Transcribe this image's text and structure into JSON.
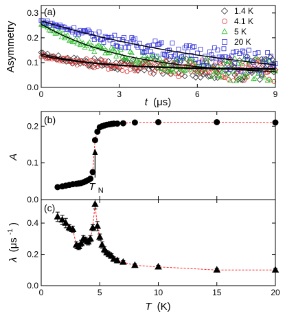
{
  "chart_data": [
    {
      "panel_label": "(a)",
      "type": "scatter",
      "xlabel_main": "t",
      "xlabel_unit": "(μs)",
      "ylabel": "Asymmetry",
      "xlim": [
        0,
        9
      ],
      "ylim": [
        0,
        0.33
      ],
      "xticks": [
        0,
        3,
        6,
        9
      ],
      "yticks": [
        0.0,
        0.1,
        0.2,
        0.3
      ],
      "ytick_labels": [
        "0.0",
        "0.1",
        "0.2",
        "0.3"
      ],
      "legend_position": "top-right",
      "series": [
        {
          "name": "1.4 K",
          "marker": "diamond",
          "color": "#333333",
          "initial": 0.135,
          "rate": 0.45,
          "baseline": 0.075
        },
        {
          "name": "4.1 K",
          "marker": "circle",
          "color": "#e03030",
          "initial": 0.128,
          "rate": 0.38,
          "baseline": 0.07
        },
        {
          "name": "5 K",
          "marker": "triangle",
          "color": "#22bb22",
          "initial": 0.255,
          "rate": 0.3,
          "baseline": 0.05
        },
        {
          "name": "20 K",
          "marker": "square",
          "color": "#2b2bd8",
          "initial": 0.268,
          "rate": 0.12,
          "baseline": 0.0
        }
      ]
    },
    {
      "panel_label": "(b)",
      "type": "scatter",
      "ylabel": "A",
      "xlim": [
        0,
        20
      ],
      "ylim": [
        0,
        0.24
      ],
      "xticks": [
        0,
        5,
        10,
        15,
        20
      ],
      "yticks": [
        0.0,
        0.1,
        0.2
      ],
      "ytick_labels": [
        "0.0",
        "0.1",
        "0.2"
      ],
      "annotation": {
        "main": "T",
        "sub": "N",
        "x": 4.6
      },
      "x": [
        1.4,
        1.8,
        2.1,
        2.4,
        2.7,
        3.0,
        3.2,
        3.4,
        3.6,
        3.8,
        4.0,
        4.2,
        4.4,
        4.6,
        4.8,
        5.0,
        5.2,
        5.4,
        5.6,
        5.8,
        6.0,
        6.2,
        6.5,
        7.0,
        8.0,
        10.0,
        15.0,
        20.0
      ],
      "y": [
        0.034,
        0.036,
        0.038,
        0.04,
        0.042,
        0.043,
        0.044,
        0.045,
        0.047,
        0.05,
        0.053,
        0.057,
        0.075,
        0.162,
        0.185,
        0.197,
        0.2,
        0.202,
        0.204,
        0.205,
        0.206,
        0.207,
        0.207,
        0.208,
        0.21,
        0.211,
        0.211,
        0.21
      ]
    },
    {
      "panel_label": "(c)",
      "type": "scatter",
      "xlabel_main": "T",
      "xlabel_unit": "(K)",
      "ylabel_main": "λ",
      "ylabel_unit": "(μs",
      "ylabel_exp": "-1",
      "xlim": [
        0,
        20
      ],
      "ylim": [
        0,
        0.55
      ],
      "xticks": [
        0,
        5,
        10,
        15,
        20
      ],
      "yticks": [
        0.0,
        0.2,
        0.4
      ],
      "ytick_labels": [
        "0.0",
        "0.2",
        "0.4"
      ],
      "x": [
        1.4,
        1.8,
        2.1,
        2.4,
        2.7,
        3.0,
        3.2,
        3.4,
        3.6,
        3.8,
        4.0,
        4.2,
        4.4,
        4.6,
        4.8,
        5.0,
        5.2,
        5.4,
        5.6,
        5.8,
        6.0,
        6.2,
        6.5,
        7.0,
        8.0,
        10.0,
        15.0,
        20.0
      ],
      "y": [
        0.44,
        0.42,
        0.4,
        0.37,
        0.36,
        0.26,
        0.25,
        0.27,
        0.3,
        0.29,
        0.28,
        0.3,
        0.37,
        0.52,
        0.38,
        0.31,
        0.26,
        0.23,
        0.21,
        0.2,
        0.19,
        0.17,
        0.16,
        0.15,
        0.13,
        0.12,
        0.1,
        0.1
      ],
      "yerr": [
        0.03,
        0.03,
        0.03,
        0.02,
        0.02,
        0.02,
        0.02,
        0.02,
        0.02,
        0.02,
        0.02,
        0.02,
        0.02,
        0.03,
        0.03,
        0.02,
        0.02,
        0.02,
        0.015,
        0.015,
        0.015,
        0.015,
        0.015,
        0.01,
        0.01,
        0.01,
        0.01,
        0.01
      ]
    }
  ],
  "colors": {
    "fit_line": "#000000",
    "guide_line": "#ff2020",
    "marker": "#000000"
  }
}
